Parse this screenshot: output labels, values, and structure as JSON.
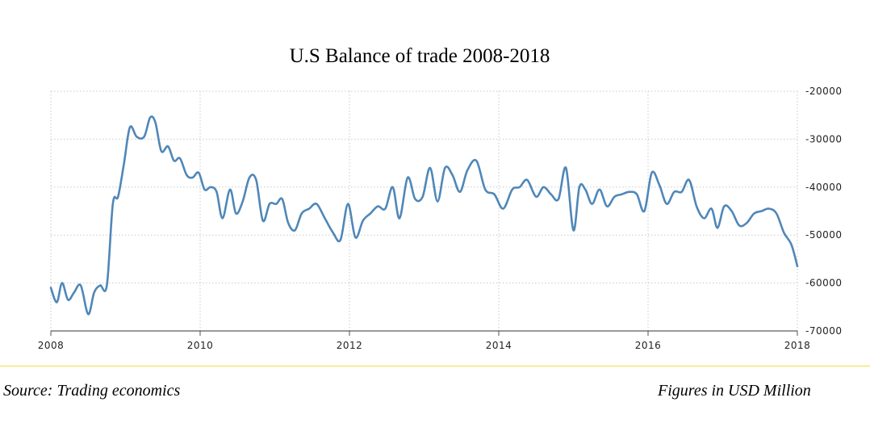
{
  "chart_data": {
    "type": "line",
    "title": "U.S Balance of trade 2008-2018",
    "xlabel": "",
    "ylabel": "",
    "x_ticks": [
      "2008",
      "2010",
      "2012",
      "2014",
      "2016",
      "2018"
    ],
    "y_ticks": [
      "-20000",
      "-30000",
      "-40000",
      "-50000",
      "-60000",
      "-70000"
    ],
    "xlim": [
      2008,
      2018
    ],
    "ylim": [
      -70000,
      -20000
    ],
    "grid": true,
    "line_color": "#4f87b8",
    "series": [
      {
        "x": [
          2008.0,
          2008.08,
          2008.15,
          2008.23,
          2008.31,
          2008.4,
          2008.5,
          2008.58,
          2008.66,
          2008.75,
          2008.83,
          2008.9,
          2008.98,
          2009.06,
          2009.15,
          2009.25,
          2009.33,
          2009.4,
          2009.48,
          2009.57,
          2009.65,
          2009.73,
          2009.82,
          2009.9,
          2009.98,
          2010.06,
          2010.14,
          2010.22,
          2010.3,
          2010.4,
          2010.48,
          2010.57,
          2010.66,
          2010.75,
          2010.84,
          2010.93,
          2011.02,
          2011.1,
          2011.18,
          2011.27,
          2011.36,
          2011.46,
          2011.56,
          2011.67,
          2011.78,
          2011.88,
          2011.98,
          2012.08,
          2012.18,
          2012.28,
          2012.38,
          2012.48,
          2012.58,
          2012.67,
          2012.78,
          2012.88,
          2012.98,
          2013.08,
          2013.18,
          2013.28,
          2013.38,
          2013.48,
          2013.58,
          2013.7,
          2013.82,
          2013.94,
          2014.06,
          2014.18,
          2014.28,
          2014.38,
          2014.5,
          2014.6,
          2014.7,
          2014.8,
          2014.9,
          2015.0,
          2015.08,
          2015.16,
          2015.25,
          2015.35,
          2015.45,
          2015.55,
          2015.65,
          2015.75,
          2015.85,
          2015.95,
          2016.05,
          2016.15,
          2016.25,
          2016.35,
          2016.45,
          2016.55,
          2016.65,
          2016.75,
          2016.85,
          2016.93,
          2017.02,
          2017.12,
          2017.22,
          2017.32,
          2017.42,
          2017.52,
          2017.62,
          2017.72,
          2017.82,
          2017.92,
          2018.0
        ],
        "values": [
          -61000,
          -64000,
          -60000,
          -63500,
          -62000,
          -60500,
          -66500,
          -62000,
          -60500,
          -60500,
          -43500,
          -42000,
          -35000,
          -27500,
          -29500,
          -29500,
          -25500,
          -26500,
          -32500,
          -31500,
          -34500,
          -34000,
          -37500,
          -38000,
          -37000,
          -40500,
          -40000,
          -41000,
          -46500,
          -40500,
          -45500,
          -43000,
          -38000,
          -38500,
          -47000,
          -43500,
          -43500,
          -42500,
          -47500,
          -49000,
          -45500,
          -44500,
          -43500,
          -46500,
          -49500,
          -51000,
          -43500,
          -50500,
          -47000,
          -45500,
          -44000,
          -44500,
          -40000,
          -46500,
          -38000,
          -42500,
          -42000,
          -36000,
          -43000,
          -36000,
          -37500,
          -41000,
          -36500,
          -34500,
          -40500,
          -41500,
          -44500,
          -40500,
          -40000,
          -38500,
          -42000,
          -40000,
          -41500,
          -42500,
          -36000,
          -49000,
          -40000,
          -40500,
          -43500,
          -40500,
          -44000,
          -42000,
          -41500,
          -41000,
          -41500,
          -45000,
          -37000,
          -39500,
          -43500,
          -41000,
          -41000,
          -38500,
          -44000,
          -46500,
          -44500,
          -48500,
          -44000,
          -45000,
          -48000,
          -47500,
          -45500,
          -45000,
          -44500,
          -45500,
          -49500,
          -52000,
          -56500
        ]
      }
    ]
  },
  "footer": {
    "source": "Source: Trading economics",
    "units": "Figures in USD Million"
  }
}
